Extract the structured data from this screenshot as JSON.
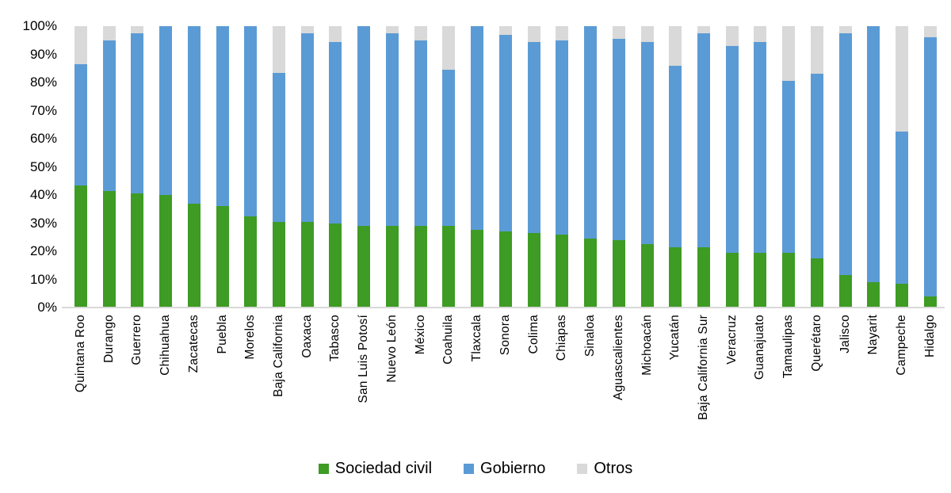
{
  "chart_data": {
    "type": "bar",
    "subtype": "stacked-percent",
    "orientation": "vertical",
    "title": "",
    "xlabel": "",
    "ylabel": "",
    "ylim": [
      0,
      100
    ],
    "yticks": [
      "0%",
      "10%",
      "20%",
      "30%",
      "40%",
      "50%",
      "60%",
      "70%",
      "80%",
      "90%",
      "100%"
    ],
    "grid": false,
    "legend_position": "bottom",
    "axis_line_color": "#d9d9d9",
    "categories": [
      "Quintana Roo",
      "Durango",
      "Guerrero",
      "Chihuahua",
      "Zacatecas",
      "Puebla",
      "Morelos",
      "Baja California",
      "Oaxaca",
      "Tabasco",
      "San Luis Potosí",
      "Nuevo León",
      "México",
      "Coahuila",
      "Tlaxcala",
      "Sonora",
      "Colima",
      "Chiapas",
      "Sinaloa",
      "Aguascalientes",
      "Michoacán",
      "Yucatán",
      "Baja California Sur",
      "Veracruz",
      "Guanajuato",
      "Tamaulipas",
      "Querétaro",
      "Jalisco",
      "Nayarit",
      "Campeche",
      "Hidalgo"
    ],
    "series": [
      {
        "name": "Sociedad civil",
        "color": "#3e9b23",
        "values": [
          43.5,
          41.5,
          40.5,
          40,
          37,
          36,
          32.5,
          30.5,
          30.5,
          30,
          29,
          29,
          29,
          29,
          27.5,
          27,
          26.5,
          26,
          24.5,
          24,
          22.5,
          21.5,
          21.5,
          19.5,
          19.5,
          19.5,
          17.5,
          11.5,
          9,
          8.5,
          4
        ]
      },
      {
        "name": "Gobierno",
        "color": "#5b9bd5",
        "values": [
          43,
          53.5,
          57,
          60,
          63,
          64,
          67.5,
          53,
          67,
          64.5,
          71,
          68.5,
          66,
          55.5,
          72.5,
          70,
          68,
          69,
          75.5,
          71.5,
          72,
          64.5,
          76,
          73.5,
          75,
          61,
          65.5,
          86,
          91,
          54,
          92
        ]
      },
      {
        "name": "Otros",
        "color": "#d9d9d9",
        "values": [
          13.5,
          5,
          2.5,
          0,
          0,
          0,
          0,
          16.5,
          2.5,
          5.5,
          0,
          2.5,
          5,
          15.5,
          0,
          3,
          5.5,
          5,
          0,
          4.5,
          5.5,
          14,
          2.5,
          7,
          5.5,
          19.5,
          17,
          2.5,
          0,
          37.5,
          4
        ]
      }
    ],
    "legend": {
      "items": [
        {
          "label": "Sociedad civil",
          "color": "#3e9b23"
        },
        {
          "label": "Gobierno",
          "color": "#5b9bd5"
        },
        {
          "label": "Otros",
          "color": "#d9d9d9"
        }
      ]
    }
  }
}
